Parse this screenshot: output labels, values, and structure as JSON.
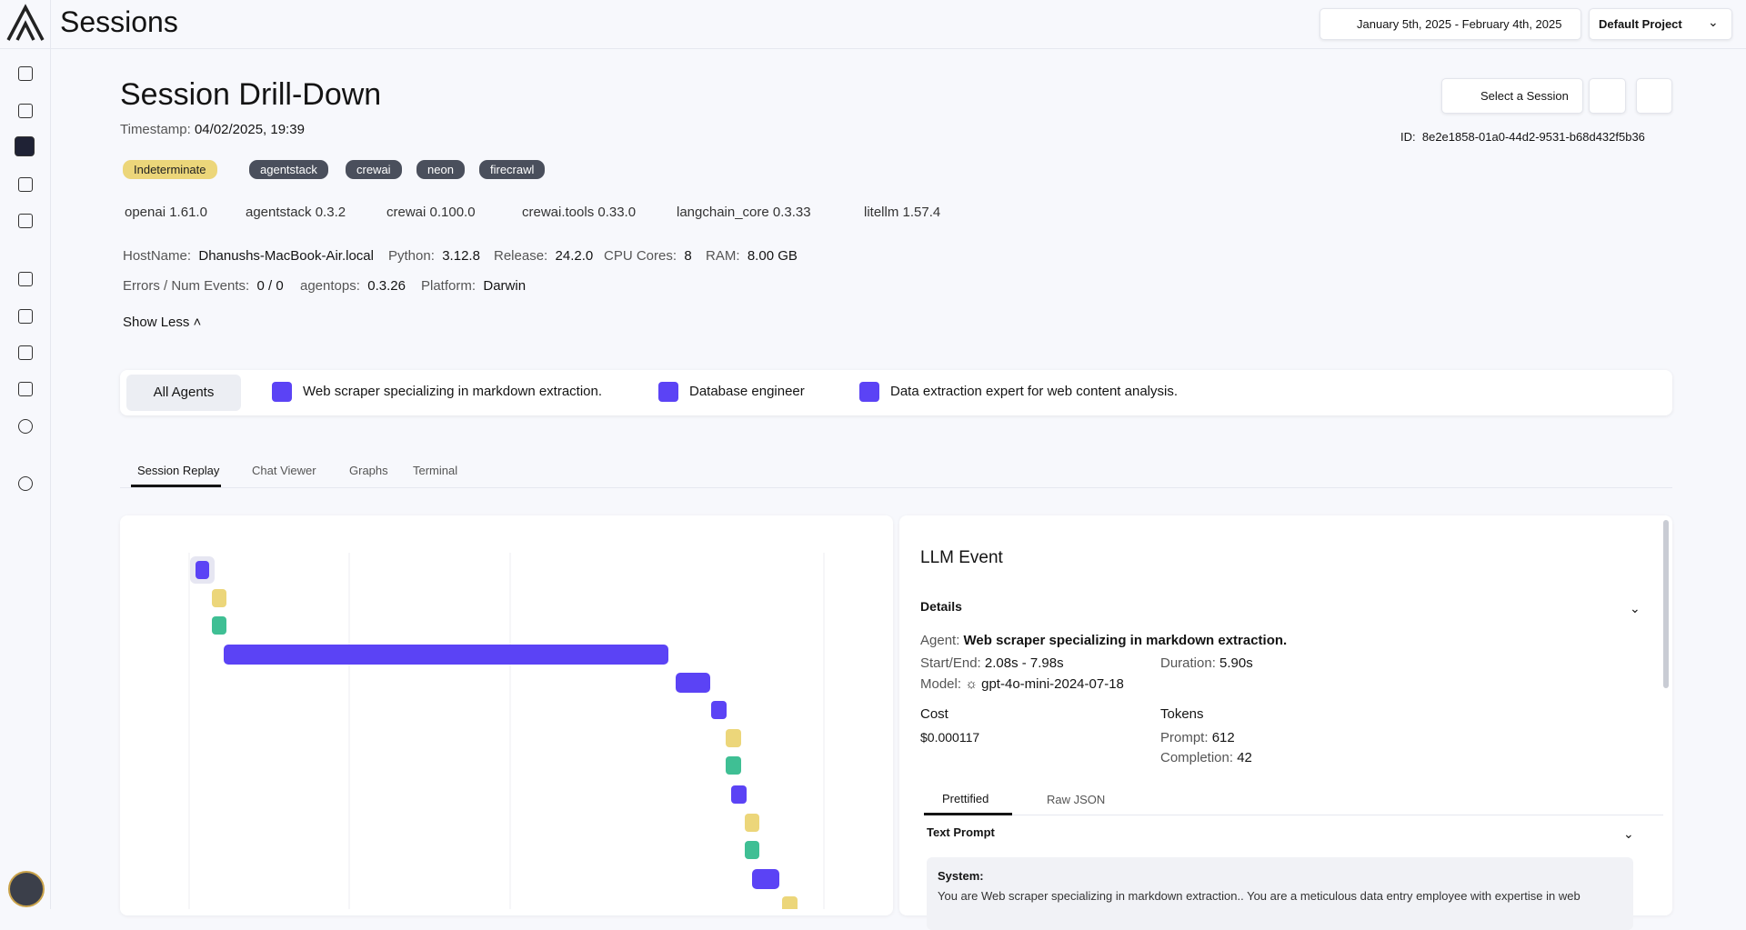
{
  "header": {
    "title": "Sessions",
    "date_range": "January 5th, 2025 - February 4th, 2025",
    "project": "Default Project"
  },
  "session": {
    "title": "Session Drill-Down",
    "timestamp_label": "Timestamp:",
    "timestamp": "04/02/2025, 19:39",
    "select_button": "Select a Session",
    "id_label": "ID:",
    "id": "8e2e1858-01a0-44d2-9531-b68d432f5b36",
    "status": "Indeterminate",
    "tags": [
      "agentstack",
      "crewai",
      "neon",
      "firecrawl"
    ],
    "packages": [
      "openai 1.61.0",
      "agentstack 0.3.2",
      "crewai 0.100.0",
      "crewai.tools 0.33.0",
      "langchain_core 0.3.33",
      "litellm 1.57.4"
    ],
    "info_row_1": [
      {
        "label": "HostName:",
        "value": "Dhanushs-MacBook-Air.local"
      },
      {
        "label": "Python:",
        "value": "3.12.8"
      },
      {
        "label": "Release:",
        "value": "24.2.0"
      },
      {
        "label": "CPU Cores:",
        "value": "8"
      },
      {
        "label": "RAM:",
        "value": "8.00 GB"
      }
    ],
    "info_row_2": [
      {
        "label": "Errors / Num Events:",
        "value": "0 / 0"
      },
      {
        "label": "agentops:",
        "value": "0.3.26"
      },
      {
        "label": "Platform:",
        "value": "Darwin"
      }
    ],
    "show_less": "Show Less"
  },
  "agents": [
    "All Agents",
    "Web scraper specializing in markdown extraction.",
    "Database engineer",
    "Data extraction expert for web content analysis."
  ],
  "tabs": [
    "Session Replay",
    "Chat Viewer",
    "Graphs",
    "Terminal"
  ],
  "event": {
    "title": "LLM Event",
    "details": "Details",
    "agent_label": "Agent:",
    "agent": "Web scraper specializing in markdown extraction.",
    "start_end_label": "Start/End:",
    "start_end": "2.08s - 7.98s",
    "duration_label": "Duration:",
    "duration": "5.90s",
    "model_label": "Model:",
    "model": "gpt-4o-mini-2024-07-18",
    "cost_label": "Cost",
    "cost": "$0.000117",
    "tokens_label": "Tokens",
    "prompt_label": "Prompt:",
    "prompt": "612",
    "completion_label": "Completion:",
    "completion": "42",
    "subtabs": [
      "Prettified",
      "Raw JSON"
    ],
    "text_prompt": "Text Prompt",
    "system_label": "System:",
    "system_text": "You are Web scraper specializing in markdown extraction.. You are a meticulous data entry employee with expertise in web"
  }
}
